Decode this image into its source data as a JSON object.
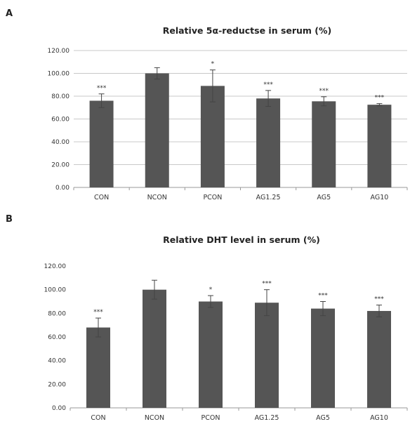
{
  "chart_data": [
    {
      "panel": "A",
      "type": "bar",
      "title": "Relative 5α-reductse in serum (%)",
      "categories": [
        "CON",
        "NCON",
        "PCON",
        "AG1.25",
        "AG5",
        "AG10"
      ],
      "values": [
        76,
        100,
        89,
        78,
        75.5,
        72.5
      ],
      "errors": [
        6,
        5,
        14,
        7,
        4,
        1
      ],
      "significance": [
        "***",
        "",
        "*",
        "***",
        "***",
        "***"
      ],
      "yticks": [
        "0.00",
        "20.00",
        "40.00",
        "60.00",
        "80.00",
        "100.00",
        "120.00"
      ],
      "ylim": [
        0,
        120
      ],
      "grid": true,
      "bar_color": "#555555"
    },
    {
      "panel": "B",
      "type": "bar",
      "title": "Relative DHT level in serum (%)",
      "categories": [
        "CON",
        "NCON",
        "PCON",
        "AG1.25",
        "AG5",
        "AG10"
      ],
      "values": [
        68,
        100,
        90,
        89,
        84,
        82
      ],
      "errors": [
        8,
        8,
        5,
        11,
        6,
        5
      ],
      "significance": [
        "***",
        "",
        "*",
        "***",
        "***",
        "***"
      ],
      "yticks": [
        "0.00",
        "20.00",
        "40.00",
        "60.00",
        "80.00",
        "100.00",
        "120.00"
      ],
      "ylim": [
        0,
        120
      ],
      "grid": false,
      "bar_color": "#555555"
    }
  ],
  "panel_labels": [
    "A",
    "B"
  ]
}
